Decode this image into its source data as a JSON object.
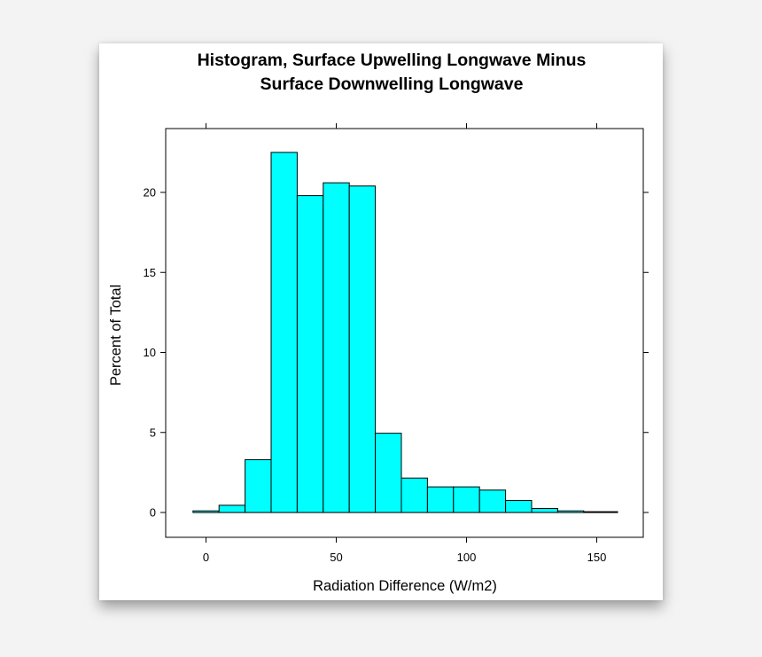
{
  "chart_data": {
    "type": "bar",
    "title": [
      "Histogram, Surface Upwelling Longwave Minus",
      "Surface Downwelling Longwave"
    ],
    "xlabel": "Radiation Difference (W/m2)",
    "ylabel": "Percent of Total",
    "xlim": [
      -5,
      158
    ],
    "ylim": [
      -1.5,
      24
    ],
    "xticks": [
      0,
      50,
      100,
      150
    ],
    "yticks": [
      0,
      5,
      10,
      15,
      20
    ],
    "bin_edges": [
      -5,
      5,
      15,
      25,
      35,
      45,
      55,
      65,
      75,
      85,
      95,
      105,
      115,
      125,
      135,
      145,
      158
    ],
    "values": [
      0.1,
      0.45,
      3.3,
      22.5,
      19.8,
      20.6,
      20.4,
      4.95,
      2.15,
      1.6,
      1.6,
      1.4,
      0.75,
      0.25,
      0.1,
      0.05
    ],
    "bar_color": "#00ffff",
    "grid": false
  }
}
